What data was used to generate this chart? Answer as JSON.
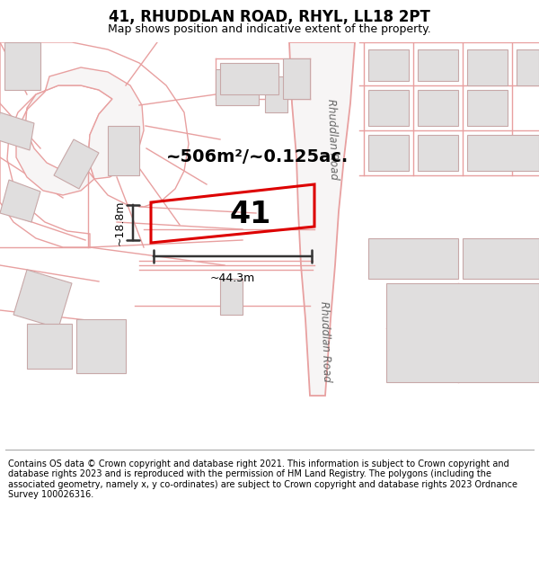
{
  "title": "41, RHUDDLAN ROAD, RHYL, LL18 2PT",
  "subtitle": "Map shows position and indicative extent of the property.",
  "footer": "Contains OS data © Crown copyright and database right 2021. This information is subject to Crown copyright and database rights 2023 and is reproduced with the permission of HM Land Registry. The polygons (including the associated geometry, namely x, y co-ordinates) are subject to Crown copyright and database rights 2023 Ordnance Survey 100026316.",
  "bg_color": "#ffffff",
  "map_bg": "#f7f5f5",
  "plot_color": "#dd0000",
  "road_color": "#e8a0a0",
  "road_lw": 1.0,
  "building_fill": "#e0dede",
  "building_edge": "#c8a8a8",
  "area_label": "~506m²/~0.125ac.",
  "number_label": "41",
  "width_label": "~44.3m",
  "height_label": "~18.8m",
  "road_label": "Rhuddlan Road",
  "figsize": [
    6.0,
    6.25
  ],
  "dpi": 100,
  "title_fontsize": 12,
  "subtitle_fontsize": 9,
  "footer_fontsize": 7.0
}
